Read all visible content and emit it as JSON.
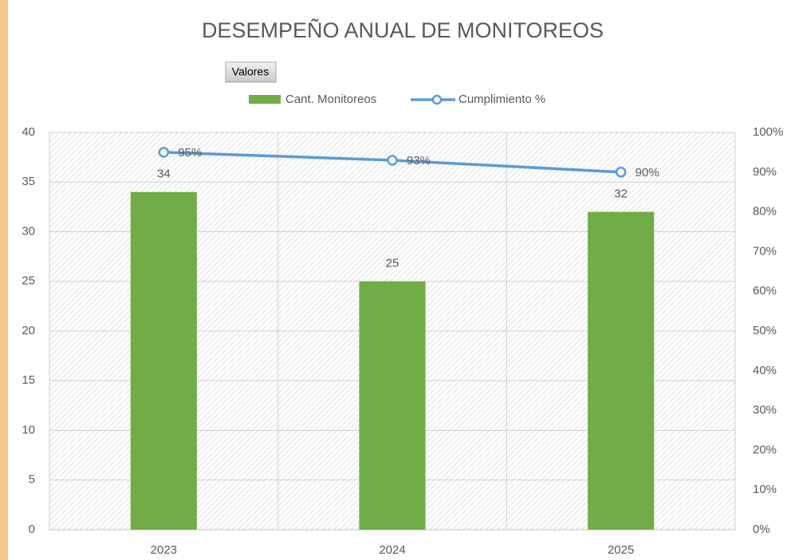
{
  "chart_data": {
    "type": "bar",
    "title": "DESEMPEÑO ANUAL DE MONITOREOS",
    "field_button": "Valores",
    "categories": [
      "2023",
      "2024",
      "2025"
    ],
    "series": [
      {
        "name": "Cant. Monitoreos",
        "color": "#70ad47",
        "values": [
          34,
          25,
          32
        ]
      },
      {
        "name": "Cumplimiento %",
        "color": "#5b9bd5",
        "axis": "y2",
        "type": "line",
        "values": [
          95,
          93,
          90
        ],
        "value_labels": [
          "95%",
          "93%",
          "90%"
        ]
      }
    ],
    "ylim": [
      0,
      40
    ],
    "yticks": [
      0,
      5,
      10,
      15,
      20,
      25,
      30,
      35,
      40
    ],
    "y2lim": [
      0,
      100
    ],
    "y2ticks": [
      {
        "value": 0,
        "label": "0%"
      },
      {
        "value": 10,
        "label": "10%"
      },
      {
        "value": 20,
        "label": "20%"
      },
      {
        "value": 30,
        "label": "30%"
      },
      {
        "value": 40,
        "label": "40%"
      },
      {
        "value": 50,
        "label": "50%"
      },
      {
        "value": 60,
        "label": "60%"
      },
      {
        "value": 70,
        "label": "70%"
      },
      {
        "value": 80,
        "label": "80%"
      },
      {
        "value": 90,
        "label": "90%"
      },
      {
        "value": 100,
        "label": "100%"
      }
    ],
    "grid": true,
    "legend": "top"
  }
}
